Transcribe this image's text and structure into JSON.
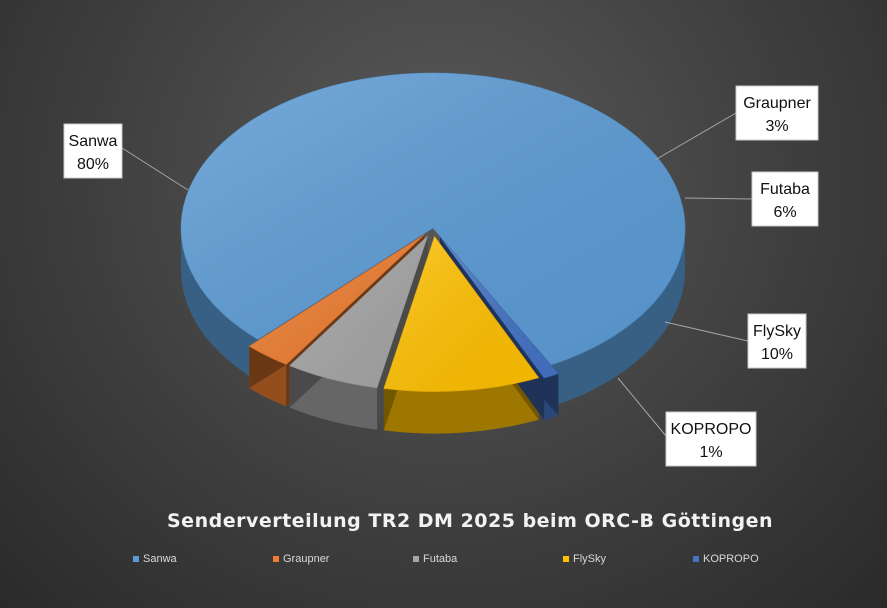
{
  "chart_data": {
    "type": "pie",
    "title": "Senderverteilung TR2 DM 2025 beim ORC-B Göttingen",
    "slices": [
      {
        "name": "Sanwa",
        "value": 80,
        "label": "80%",
        "color": "#5b9bd5"
      },
      {
        "name": "Graupner",
        "value": 3,
        "label": "3%",
        "color": "#ed7d31"
      },
      {
        "name": "Futaba",
        "value": 6,
        "label": "6%",
        "color": "#a5a5a5"
      },
      {
        "name": "FlySky",
        "value": 10,
        "label": "10%",
        "color": "#ffc000"
      },
      {
        "name": "KOPROPO",
        "value": 1,
        "label": "1%",
        "color": "#4472c4"
      }
    ],
    "legend_position": "bottom",
    "style": "3d-exploded"
  }
}
